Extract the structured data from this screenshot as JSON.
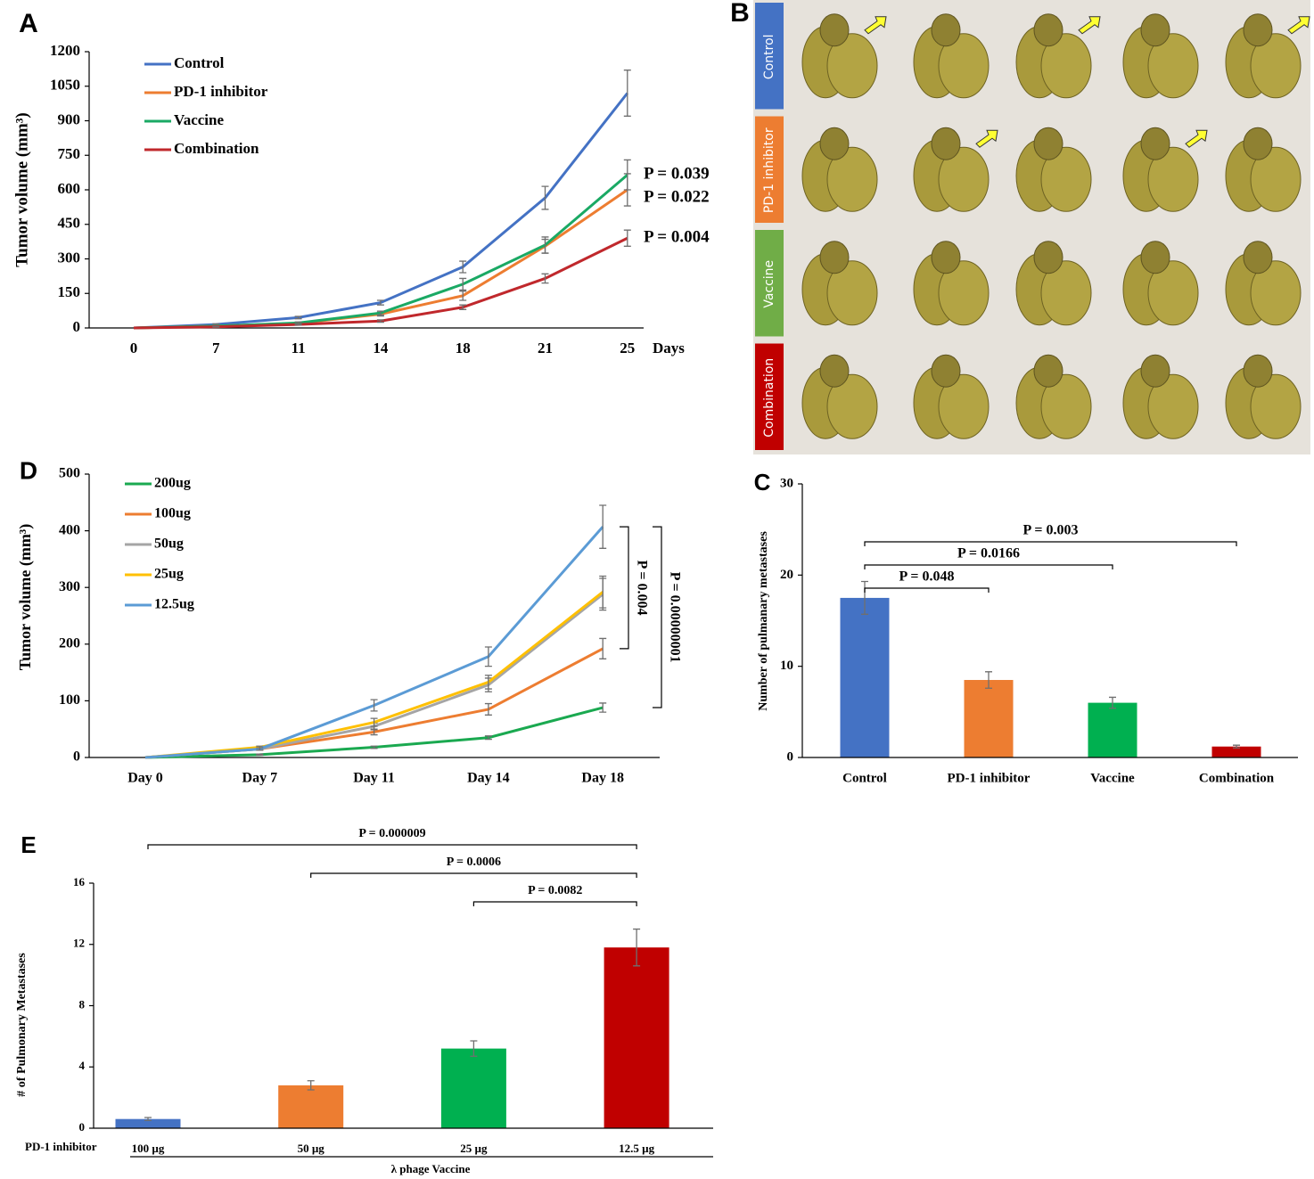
{
  "chart_data": [
    {
      "panel": "A",
      "type": "line",
      "x_label": "Days",
      "y_label": "Tumor volume (mm³)",
      "categories": [
        "0",
        "7",
        "11",
        "14",
        "18",
        "21",
        "25"
      ],
      "ylim": [
        0,
        1200
      ],
      "yticks": [
        0,
        150,
        300,
        450,
        600,
        750,
        900,
        1050,
        1200
      ],
      "series": [
        {
          "name": "Control",
          "color": "#4472c4",
          "values": [
            0,
            15,
            45,
            110,
            265,
            565,
            1020
          ],
          "errors": [
            0,
            3,
            5,
            10,
            25,
            50,
            100
          ]
        },
        {
          "name": "PD-1 inhibitor",
          "color": "#ed7d31",
          "values": [
            0,
            8,
            20,
            60,
            140,
            355,
            600
          ],
          "errors": [
            0,
            2,
            4,
            8,
            20,
            30,
            70
          ]
        },
        {
          "name": "Vaccine",
          "color": "#1aa964",
          "values": [
            0,
            8,
            22,
            65,
            190,
            360,
            665
          ],
          "errors": [
            0,
            2,
            4,
            8,
            25,
            35,
            65
          ]
        },
        {
          "name": "Combination",
          "color": "#c0282c",
          "values": [
            0,
            5,
            15,
            30,
            90,
            215,
            390
          ],
          "errors": [
            0,
            1,
            3,
            5,
            10,
            20,
            35
          ]
        }
      ],
      "annotations": [
        {
          "series": "Vaccine",
          "label": "P = 0.039"
        },
        {
          "series": "PD-1 inhibitor",
          "label": "P = 0.022"
        },
        {
          "series": "Combination",
          "label": "P = 0.004"
        }
      ]
    },
    {
      "panel": "B",
      "type": "image",
      "row_labels": [
        "Control",
        "PD-1 inhibitor",
        "Vaccine",
        "Combination"
      ],
      "row_colors": [
        "#4472c4",
        "#ed7d31",
        "#70ad47",
        "#c00000"
      ]
    },
    {
      "panel": "C",
      "type": "bar",
      "y_label": "Number of pulmanary metastases",
      "categories": [
        "Control",
        "PD-1 inhibitor",
        "Vaccine",
        "Combination"
      ],
      "values": [
        17.5,
        8.5,
        6,
        1.2
      ],
      "errors": [
        1.8,
        0.9,
        0.6,
        0.15
      ],
      "colors": [
        "#4472c4",
        "#ed7d31",
        "#00b050",
        "#c00000"
      ],
      "ylim": [
        0,
        30
      ],
      "yticks": [
        0,
        10,
        20,
        30
      ],
      "comparisons": [
        {
          "between": [
            "Control",
            "PD-1 inhibitor"
          ],
          "label": "P = 0.048"
        },
        {
          "between": [
            "Control",
            "Vaccine"
          ],
          "label": "P = 0.0166"
        },
        {
          "between": [
            "Control",
            "Combination"
          ],
          "label": "P = 0.003"
        }
      ]
    },
    {
      "panel": "D",
      "type": "line",
      "y_label": "Tumor volume (mm³)",
      "categories": [
        "Day 0",
        "Day 7",
        "Day 11",
        "Day 14",
        "Day 18"
      ],
      "ylim": [
        0,
        500
      ],
      "yticks": [
        0,
        100,
        200,
        300,
        400,
        500
      ],
      "series": [
        {
          "name": "200ug",
          "color": "#1aa950",
          "values": [
            0,
            5,
            18,
            35,
            88
          ],
          "errors": [
            0,
            1,
            2,
            3,
            8
          ]
        },
        {
          "name": "100ug",
          "color": "#ed7d31",
          "values": [
            0,
            15,
            45,
            85,
            192
          ],
          "errors": [
            0,
            2,
            5,
            10,
            18
          ]
        },
        {
          "name": "50ug",
          "color": "#a5a5a5",
          "values": [
            0,
            15,
            55,
            128,
            288
          ],
          "errors": [
            0,
            2,
            6,
            12,
            28
          ]
        },
        {
          "name": "25ug",
          "color": "#ffc000",
          "values": [
            0,
            18,
            62,
            133,
            292
          ],
          "errors": [
            0,
            2,
            7,
            12,
            28
          ]
        },
        {
          "name": "12.5ug",
          "color": "#5b9bd5",
          "values": [
            0,
            15,
            92,
            178,
            407
          ],
          "errors": [
            0,
            2,
            10,
            17,
            38
          ]
        }
      ],
      "comparisons": [
        {
          "between": [
            "100ug",
            "12.5ug"
          ],
          "label": "P = 0.004"
        },
        {
          "between": [
            "200ug",
            "12.5ug"
          ],
          "label": "P = 0.00000001"
        }
      ]
    },
    {
      "panel": "E",
      "type": "bar",
      "y_label": "# of Pulmonary Metastases",
      "categories": [
        "100 µg",
        "50 µg",
        "25 µg",
        "12.5 µg"
      ],
      "values": [
        0.6,
        2.8,
        5.2,
        11.8
      ],
      "errors": [
        0.1,
        0.3,
        0.5,
        1.2
      ],
      "colors": [
        "#4472c4",
        "#ed7d31",
        "#00b050",
        "#c00000"
      ],
      "ylim": [
        0,
        16
      ],
      "yticks": [
        0,
        4,
        8,
        12,
        16
      ],
      "row_label": "PD-1 inhibitor",
      "group_label": "λ phage Vaccine",
      "comparisons": [
        {
          "between": [
            "25 µg",
            "12.5 µg"
          ],
          "label": "P = 0.0082"
        },
        {
          "between": [
            "50 µg",
            "12.5 µg"
          ],
          "label": "P = 0.0006"
        },
        {
          "between": [
            "100 µg",
            "12.5 µg"
          ],
          "label": "P = 0.000009"
        }
      ]
    }
  ]
}
